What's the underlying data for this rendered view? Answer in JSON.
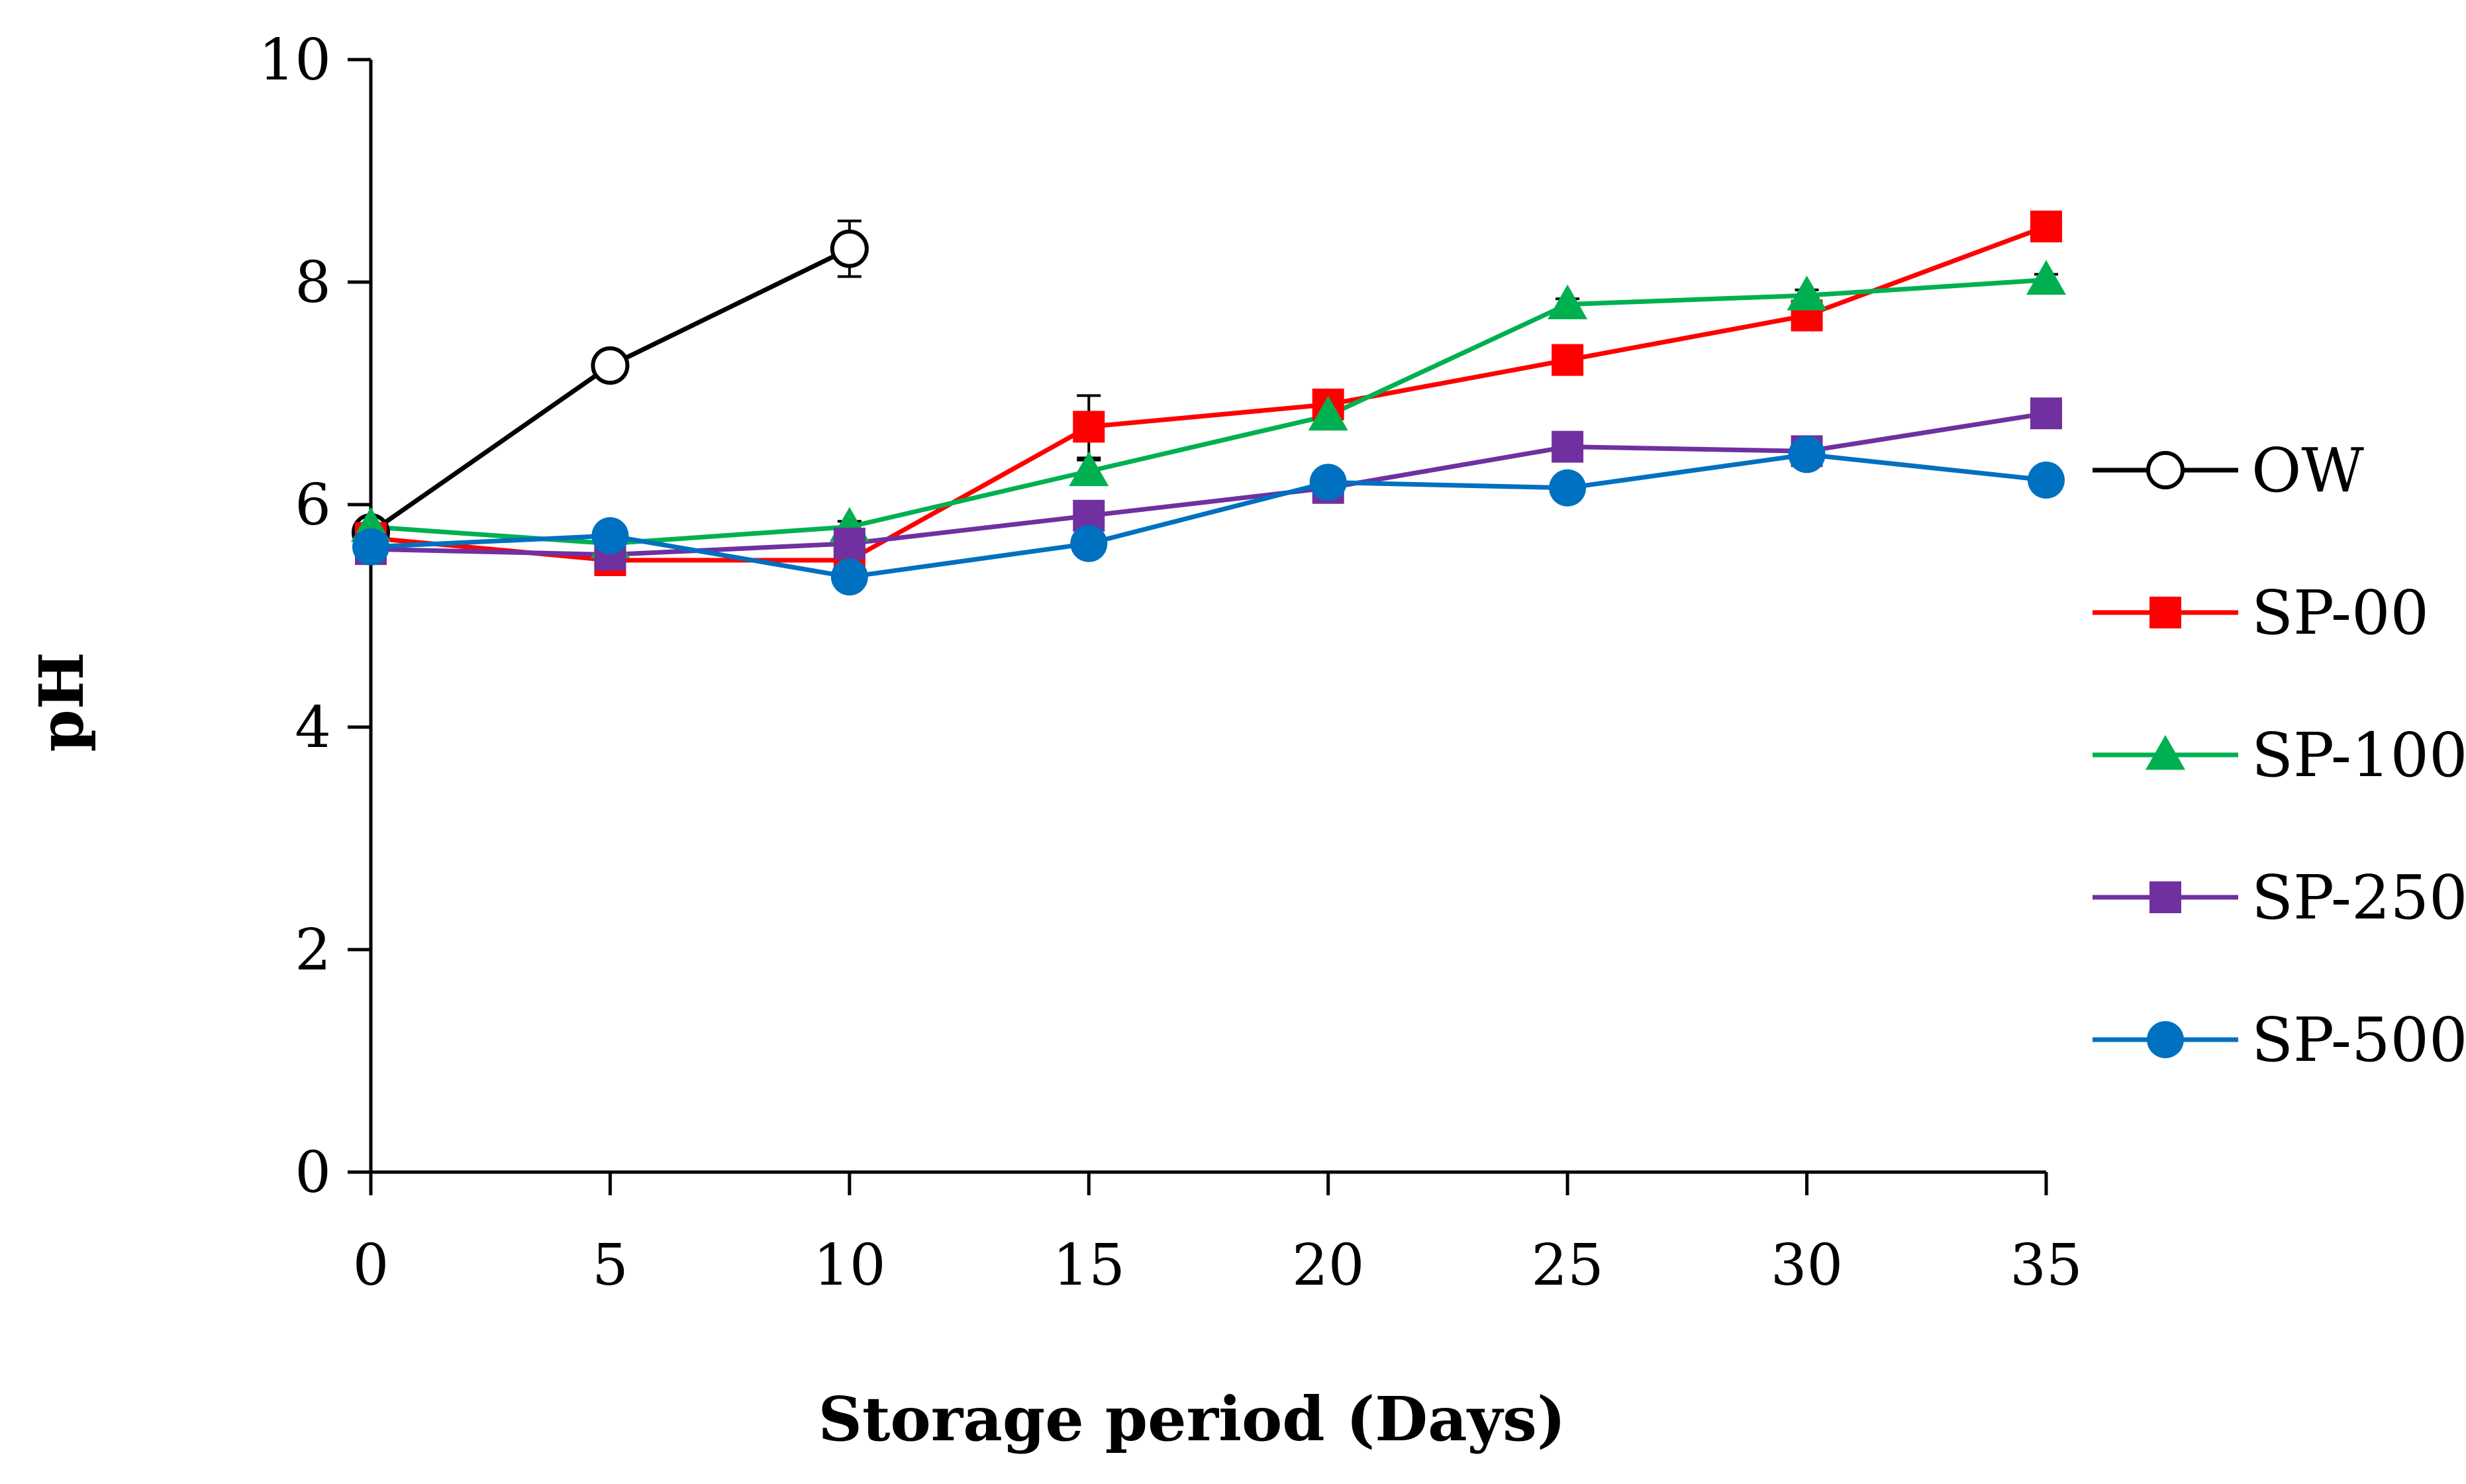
{
  "chart_data": {
    "type": "line",
    "title": "",
    "xlabel": "Storage period (Days)",
    "ylabel": "pH",
    "x": [
      0,
      5,
      10,
      15,
      20,
      25,
      30,
      35
    ],
    "xlim": [
      0,
      35
    ],
    "ylim": [
      0,
      10
    ],
    "x_ticks": [
      "0",
      "5",
      "10",
      "15",
      "20",
      "25",
      "30",
      "35"
    ],
    "y_ticks": [
      "0",
      "2",
      "4",
      "6",
      "8",
      "10"
    ],
    "grid": false,
    "legend_position": "right",
    "series": [
      {
        "name": "OW",
        "color": "#000000",
        "marker": "open-circle",
        "values": [
          5.75,
          7.25,
          8.3,
          null,
          null,
          null,
          null,
          null
        ],
        "errors": [
          0.05,
          0.08,
          0.25,
          null,
          null,
          null,
          null,
          null
        ]
      },
      {
        "name": "SP-00",
        "color": "#ff0000",
        "marker": "square",
        "values": [
          5.7,
          5.5,
          5.5,
          6.7,
          6.9,
          7.3,
          7.7,
          8.5
        ],
        "errors": [
          0.05,
          0.08,
          0.05,
          0.28,
          0.05,
          0.08,
          0.1,
          0.05
        ]
      },
      {
        "name": "SP-100",
        "color": "#00b050",
        "marker": "triangle",
        "values": [
          5.8,
          5.65,
          5.8,
          6.3,
          6.8,
          7.8,
          7.88,
          8.02
        ],
        "errors": [
          0.05,
          0.05,
          0.05,
          0.1,
          0.05,
          0.05,
          0.05,
          0.05
        ]
      },
      {
        "name": "SP-250",
        "color": "#7030a0",
        "marker": "square",
        "values": [
          5.6,
          5.55,
          5.65,
          5.9,
          6.15,
          6.52,
          6.48,
          6.82
        ],
        "errors": [
          0.05,
          0.05,
          0.05,
          0.05,
          0.05,
          0.05,
          0.05,
          0.05
        ]
      },
      {
        "name": "SP-500",
        "color": "#0070c0",
        "marker": "circle",
        "values": [
          5.62,
          5.72,
          5.35,
          5.65,
          6.2,
          6.15,
          6.45,
          6.22
        ],
        "errors": [
          0.05,
          0.05,
          0.05,
          0.05,
          0.05,
          0.05,
          0.05,
          0.05
        ]
      }
    ]
  }
}
